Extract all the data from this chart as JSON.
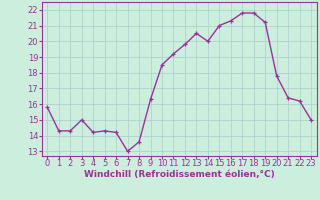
{
  "x": [
    0,
    1,
    2,
    3,
    4,
    5,
    6,
    7,
    8,
    9,
    10,
    11,
    12,
    13,
    14,
    15,
    16,
    17,
    18,
    19,
    20,
    21,
    22,
    23
  ],
  "y": [
    15.8,
    14.3,
    14.3,
    15.0,
    14.2,
    14.3,
    14.2,
    13.0,
    13.6,
    16.3,
    18.5,
    19.2,
    19.8,
    20.5,
    20.0,
    21.0,
    21.3,
    21.8,
    21.8,
    21.2,
    17.8,
    16.4,
    16.2,
    15.0
  ],
  "line_color": "#993399",
  "marker": "+",
  "bg_color": "#cceedd",
  "grid_color": "#aacccc",
  "xlabel": "Windchill (Refroidissement éolien,°C)",
  "ylim": [
    12.7,
    22.5
  ],
  "xlim": [
    -0.5,
    23.5
  ],
  "yticks": [
    13,
    14,
    15,
    16,
    17,
    18,
    19,
    20,
    21,
    22
  ],
  "xticks": [
    0,
    1,
    2,
    3,
    4,
    5,
    6,
    7,
    8,
    9,
    10,
    11,
    12,
    13,
    14,
    15,
    16,
    17,
    18,
    19,
    20,
    21,
    22,
    23
  ],
  "xlabel_fontsize": 6.5,
  "tick_fontsize": 6.0,
  "line_width": 1.0,
  "marker_size": 3.5
}
